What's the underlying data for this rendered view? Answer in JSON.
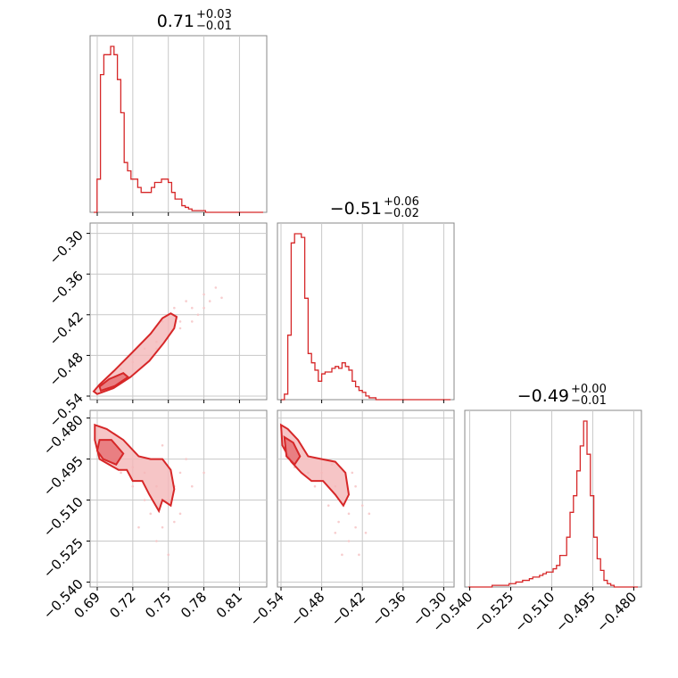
{
  "chart_data": {
    "type": "corner",
    "color": "#d62728",
    "fill_color": "#f4b7b8",
    "scatter_color": "#f6c4c5",
    "grid": true,
    "params": [
      {
        "range": [
          0.687,
          0.83
        ],
        "ticks": [
          0.69,
          0.72,
          0.75,
          0.78,
          0.81
        ],
        "tick_labels": [
          "0.69",
          "0.72",
          "0.75",
          "0.78",
          "0.81"
        ],
        "title": {
          "value": "0.71",
          "sup": "+0.03",
          "sub": "−0.01"
        }
      },
      {
        "range": [
          -0.54,
          -0.29
        ],
        "ticks": [
          -0.54,
          -0.48,
          -0.42,
          -0.36,
          -0.3
        ],
        "tick_labels": [
          "−0.54",
          "−0.48",
          "−0.42",
          "−0.36",
          "−0.30"
        ],
        "title": {
          "value": "−0.51",
          "sup": "+0.06",
          "sub": "−0.02"
        }
      },
      {
        "range": [
          -0.5405,
          -0.4785
        ],
        "ticks": [
          -0.54,
          -0.525,
          -0.51,
          -0.495,
          -0.48
        ],
        "tick_labels": [
          "−0.540",
          "−0.525",
          "−0.510",
          "−0.495",
          "−0.480"
        ],
        "title": {
          "value": "−0.49",
          "sup": "+0.00",
          "sub": "−0.01"
        }
      }
    ],
    "histograms": [
      {
        "param": 0,
        "edges_start": 0.687,
        "bin_width": 0.00286,
        "counts": [
          0,
          20,
          83,
          95,
          95,
          100,
          95,
          80,
          60,
          30,
          25,
          20,
          20,
          15,
          12,
          12,
          12,
          15,
          18,
          18,
          20,
          20,
          18,
          12,
          8,
          8,
          4,
          3,
          2,
          1,
          1,
          1,
          1,
          0,
          0,
          0,
          0,
          0,
          0,
          0,
          0,
          0,
          0,
          0,
          0,
          0,
          0,
          0,
          0,
          0
        ]
      },
      {
        "param": 1,
        "edges_start": -0.54,
        "bin_width": 0.005,
        "counts": [
          0,
          3,
          35,
          85,
          90,
          90,
          88,
          55,
          25,
          20,
          16,
          10,
          14,
          15,
          15,
          17,
          18,
          17,
          20,
          18,
          16,
          10,
          7,
          5,
          4,
          2,
          1,
          1,
          0,
          0,
          0,
          0,
          0,
          0,
          0,
          0,
          0,
          0,
          0,
          0,
          0,
          0,
          0,
          0,
          0,
          0,
          0,
          0,
          0,
          0
        ]
      },
      {
        "param": 2,
        "edges_start": -0.5405,
        "bin_width": 0.00124,
        "counts": [
          0,
          0,
          0,
          0,
          0,
          0,
          0,
          1,
          1,
          1,
          1,
          1,
          2,
          2,
          3,
          3,
          4,
          4,
          5,
          6,
          6,
          7,
          8,
          9,
          9,
          11,
          13,
          19,
          19,
          30,
          45,
          55,
          70,
          85,
          100,
          80,
          55,
          30,
          17,
          10,
          4,
          2,
          1,
          0,
          0,
          0,
          0,
          0,
          0,
          0
        ]
      }
    ],
    "pairs": [
      {
        "x_param": 0,
        "y_param": 1,
        "contours": [
          [
            [
              0.69,
              -0.537
            ],
            [
              0.704,
              -0.528
            ],
            [
              0.718,
              -0.512
            ],
            [
              0.734,
              -0.488
            ],
            [
              0.746,
              -0.462
            ],
            [
              0.755,
              -0.44
            ],
            [
              0.757,
              -0.423
            ],
            [
              0.752,
              -0.418
            ],
            [
              0.745,
              -0.425
            ],
            [
              0.735,
              -0.448
            ],
            [
              0.72,
              -0.475
            ],
            [
              0.704,
              -0.503
            ],
            [
              0.692,
              -0.523
            ],
            [
              0.687,
              -0.533
            ]
          ],
          [
            [
              0.693,
              -0.532
            ],
            [
              0.705,
              -0.525
            ],
            [
              0.716,
              -0.512
            ],
            [
              0.712,
              -0.506
            ],
            [
              0.7,
              -0.515
            ],
            [
              0.692,
              -0.526
            ]
          ]
        ],
        "samples": [
          [
            0.7,
            -0.52
          ],
          [
            0.72,
            -0.49
          ],
          [
            0.74,
            -0.47
          ],
          [
            0.75,
            -0.45
          ],
          [
            0.76,
            -0.43
          ],
          [
            0.77,
            -0.41
          ],
          [
            0.765,
            -0.4
          ],
          [
            0.78,
            -0.39
          ],
          [
            0.775,
            -0.42
          ],
          [
            0.79,
            -0.38
          ],
          [
            0.785,
            -0.4
          ],
          [
            0.76,
            -0.44
          ],
          [
            0.755,
            -0.41
          ],
          [
            0.745,
            -0.43
          ],
          [
            0.73,
            -0.47
          ],
          [
            0.77,
            -0.43
          ],
          [
            0.78,
            -0.41
          ],
          [
            0.74,
            -0.46
          ],
          [
            0.71,
            -0.5
          ],
          [
            0.795,
            -0.395
          ]
        ]
      },
      {
        "x_param": 0,
        "y_param": 2,
        "contours": [
          [
            [
              0.688,
              -0.4825
            ],
            [
              0.698,
              -0.484
            ],
            [
              0.712,
              -0.488
            ],
            [
              0.725,
              -0.494
            ],
            [
              0.735,
              -0.495
            ],
            [
              0.745,
              -0.495
            ],
            [
              0.752,
              -0.499
            ],
            [
              0.755,
              -0.506
            ],
            [
              0.752,
              -0.512
            ],
            [
              0.745,
              -0.51
            ],
            [
              0.742,
              -0.514
            ],
            [
              0.734,
              -0.508
            ],
            [
              0.728,
              -0.503
            ],
            [
              0.72,
              -0.503
            ],
            [
              0.715,
              -0.499
            ],
            [
              0.708,
              -0.499
            ],
            [
              0.7,
              -0.497
            ],
            [
              0.692,
              -0.495
            ],
            [
              0.688,
              -0.488
            ]
          ],
          [
            [
              0.692,
              -0.488
            ],
            [
              0.702,
              -0.488
            ],
            [
              0.712,
              -0.493
            ],
            [
              0.706,
              -0.497
            ],
            [
              0.695,
              -0.495
            ],
            [
              0.69,
              -0.492
            ]
          ]
        ],
        "samples": [
          [
            0.73,
            -0.5
          ],
          [
            0.74,
            -0.505
          ],
          [
            0.75,
            -0.51
          ],
          [
            0.76,
            -0.5
          ],
          [
            0.735,
            -0.515
          ],
          [
            0.745,
            -0.52
          ],
          [
            0.755,
            -0.518
          ],
          [
            0.72,
            -0.498
          ],
          [
            0.765,
            -0.495
          ],
          [
            0.74,
            -0.525
          ],
          [
            0.75,
            -0.53
          ],
          [
            0.73,
            -0.51
          ],
          [
            0.77,
            -0.505
          ],
          [
            0.72,
            -0.505
          ],
          [
            0.71,
            -0.5
          ],
          [
            0.76,
            -0.515
          ],
          [
            0.745,
            -0.49
          ],
          [
            0.755,
            -0.505
          ],
          [
            0.725,
            -0.52
          ],
          [
            0.78,
            -0.5
          ]
        ]
      },
      {
        "x_param": 1,
        "y_param": 2,
        "contours": [
          [
            [
              -0.54,
              -0.4825
            ],
            [
              -0.53,
              -0.484
            ],
            [
              -0.515,
              -0.488
            ],
            [
              -0.5,
              -0.494
            ],
            [
              -0.48,
              -0.495
            ],
            [
              -0.46,
              -0.496
            ],
            [
              -0.445,
              -0.5
            ],
            [
              -0.44,
              -0.508
            ],
            [
              -0.448,
              -0.512
            ],
            [
              -0.46,
              -0.508
            ],
            [
              -0.478,
              -0.503
            ],
            [
              -0.495,
              -0.503
            ],
            [
              -0.51,
              -0.5
            ],
            [
              -0.525,
              -0.496
            ],
            [
              -0.538,
              -0.49
            ]
          ],
          [
            [
              -0.535,
              -0.487
            ],
            [
              -0.522,
              -0.489
            ],
            [
              -0.512,
              -0.494
            ],
            [
              -0.52,
              -0.497
            ],
            [
              -0.532,
              -0.494
            ]
          ]
        ],
        "samples": [
          [
            -0.48,
            -0.5
          ],
          [
            -0.46,
            -0.505
          ],
          [
            -0.45,
            -0.51
          ],
          [
            -0.44,
            -0.515
          ],
          [
            -0.43,
            -0.505
          ],
          [
            -0.47,
            -0.512
          ],
          [
            -0.43,
            -0.52
          ],
          [
            -0.42,
            -0.512
          ],
          [
            -0.455,
            -0.518
          ],
          [
            -0.44,
            -0.525
          ],
          [
            -0.425,
            -0.53
          ],
          [
            -0.49,
            -0.505
          ],
          [
            -0.5,
            -0.5
          ],
          [
            -0.465,
            -0.497
          ],
          [
            -0.435,
            -0.5
          ],
          [
            -0.45,
            -0.53
          ],
          [
            -0.41,
            -0.515
          ],
          [
            -0.52,
            -0.498
          ],
          [
            -0.46,
            -0.522
          ],
          [
            -0.415,
            -0.522
          ]
        ]
      }
    ]
  }
}
